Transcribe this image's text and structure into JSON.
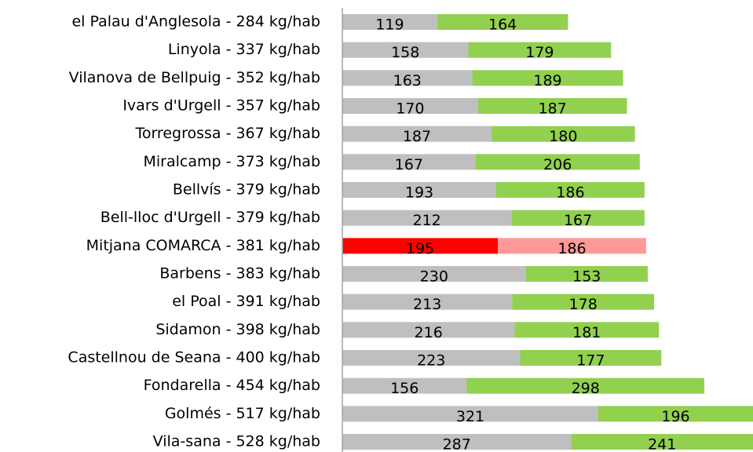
{
  "chart_data": {
    "type": "stacked_barh",
    "categories": [
      "el Palau d'Anglesola - 284 kg/hab",
      "Linyola - 337 kg/hab",
      "Vilanova de Bellpuig - 352 kg/hab",
      "Ivars d'Urgell - 357 kg/hab",
      "Torregrossa - 367 kg/hab",
      "Miralcamp - 373 kg/hab",
      "Bellvís - 379 kg/hab",
      "Bell-lloc d'Urgell - 379 kg/hab",
      "Mitjana COMARCA - 381 kg/hab",
      "Barbens - 383 kg/hab",
      "el Poal - 391 kg/hab",
      "Sidamon - 398 kg/hab",
      "Castellnou de Seana - 400 kg/hab",
      "Fondarella - 454 kg/hab",
      "Golmés - 517 kg/hab",
      "Vila-sana - 528 kg/hab"
    ],
    "series": [
      {
        "color": "#bfbfbf",
        "highlight_color": "#ff0000",
        "values": [
          119,
          158,
          163,
          170,
          187,
          167,
          193,
          212,
          195,
          230,
          213,
          216,
          223,
          156,
          321,
          287
        ]
      },
      {
        "color": "#92d050",
        "highlight_color": "#ff9999",
        "values": [
          164,
          179,
          189,
          187,
          180,
          206,
          186,
          167,
          186,
          153,
          178,
          181,
          177,
          298,
          196,
          241
        ]
      }
    ],
    "highlight_category": 8,
    "xlim": [
      0,
      515
    ]
  }
}
